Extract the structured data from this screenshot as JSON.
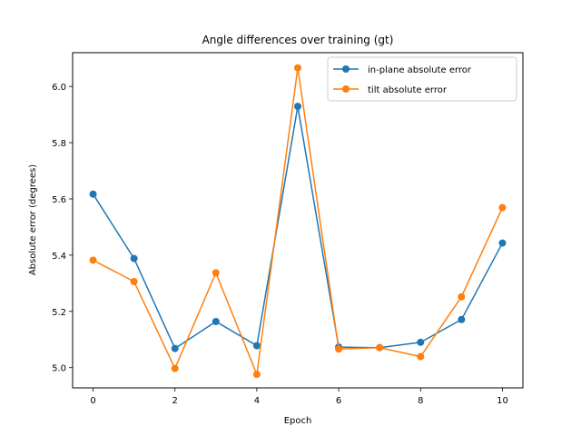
{
  "chart_data": {
    "type": "line",
    "title": "Angle differences over training (gt)",
    "xlabel": "Epoch",
    "ylabel": "Absolute error (degrees)",
    "xlim": [
      -0.5,
      10.5
    ],
    "ylim": [
      4.928,
      6.12
    ],
    "x_ticks": [
      0,
      2,
      4,
      6,
      8,
      10
    ],
    "y_ticks": [
      5.0,
      5.2,
      5.4,
      5.6,
      5.8,
      6.0
    ],
    "y_tick_labels": [
      "5.0",
      "5.2",
      "5.4",
      "5.6",
      "5.8",
      "6.0"
    ],
    "grid": false,
    "legend_position": "top-right",
    "x": [
      0,
      1,
      2,
      3,
      4,
      5,
      6,
      7,
      8,
      9,
      10
    ],
    "series": [
      {
        "name": "in-plane absolute error",
        "color": "#1f77b4",
        "values": [
          5.617,
          5.388,
          5.068,
          5.164,
          5.078,
          5.929,
          5.073,
          5.071,
          5.09,
          5.171,
          5.443
        ]
      },
      {
        "name": "tilt absolute error",
        "color": "#ff7f0e",
        "values": [
          5.382,
          5.306,
          4.997,
          5.337,
          4.976,
          6.066,
          5.066,
          5.071,
          5.039,
          5.252,
          5.569
        ]
      }
    ]
  }
}
